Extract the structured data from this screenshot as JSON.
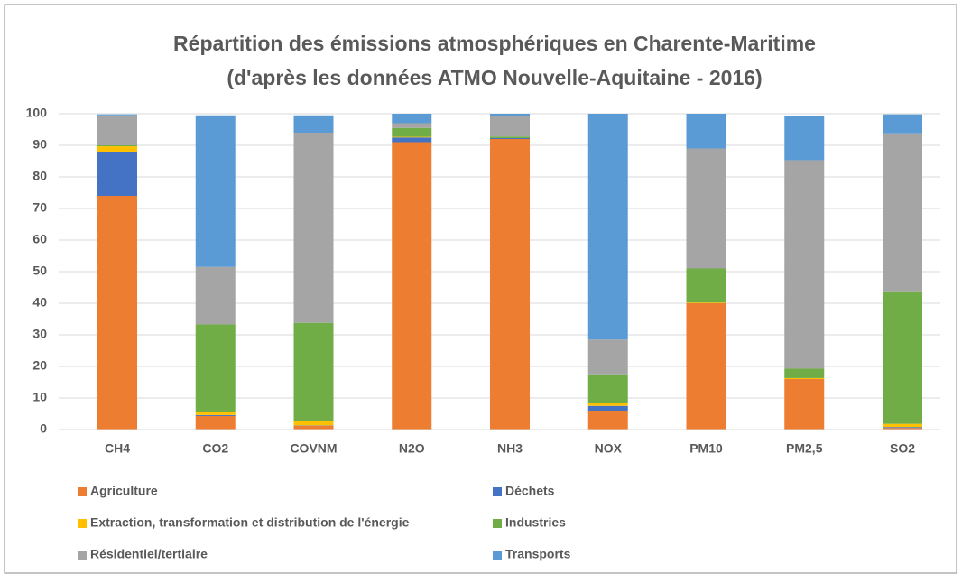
{
  "chart_data": {
    "type": "stacked_bar",
    "title": [
      "Répartition des émissions atmosphériques en Charente-Maritime",
      "(d'après les données ATMO Nouvelle-Aquitaine - 2016)"
    ],
    "categories": [
      "CH4",
      "CO2",
      "COVNM",
      "N2O",
      "NH3",
      "NOX",
      "PM10",
      "PM2,5",
      "SO2"
    ],
    "series": [
      {
        "name": "Agriculture",
        "color": "#ED7D31",
        "values": [
          74,
          4.3,
          1.2,
          91,
          92,
          6,
          40,
          16,
          0.5
        ]
      },
      {
        "name": "Déchets",
        "color": "#4472C4",
        "values": [
          14,
          0.3,
          0.1,
          1.5,
          0.3,
          1.5,
          0,
          0,
          0.3
        ]
      },
      {
        "name": "Extraction, transformation et distribution de l'énergie",
        "color": "#FFC000",
        "values": [
          1.7,
          1,
          1.5,
          0.2,
          0,
          1,
          0.2,
          0.3,
          1
        ]
      },
      {
        "name": "Industries",
        "color": "#70AD47",
        "values": [
          0.3,
          27.7,
          31,
          2.8,
          0.5,
          9,
          10.8,
          3,
          42
        ]
      },
      {
        "name": "Résidentiel/tertiaire",
        "color": "#A5A5A5",
        "values": [
          9.5,
          18.2,
          60.2,
          1.5,
          6.5,
          11,
          38,
          66,
          50
        ]
      },
      {
        "name": "Transports",
        "color": "#5B9BD5",
        "values": [
          0.3,
          48,
          5.5,
          3,
          0.7,
          71.5,
          11,
          14,
          6
        ]
      }
    ],
    "ylim": [
      0,
      100
    ],
    "yticks": [
      0,
      10,
      20,
      30,
      40,
      50,
      60,
      70,
      80,
      90,
      100
    ],
    "grid": true,
    "legend": "bottom"
  }
}
